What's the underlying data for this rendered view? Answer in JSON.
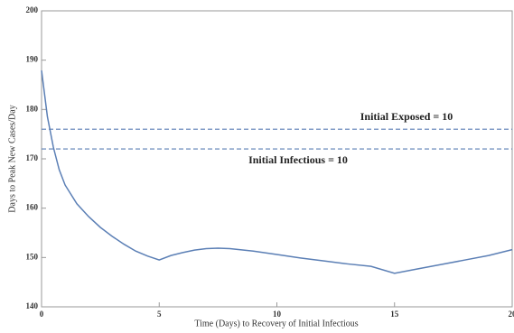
{
  "chart_data": {
    "type": "line",
    "xlabel": "Time (Days) to Recovery of Initial Infectious",
    "ylabel": "Days to Peak New Cases/Day",
    "xlim": [
      0,
      20
    ],
    "xticks": [
      0,
      5,
      10,
      15,
      20
    ],
    "ylim": [
      140,
      200
    ],
    "yticks": [
      140,
      150,
      160,
      170,
      180,
      190,
      200
    ],
    "series": [
      {
        "color": "#5b7fb5",
        "x": [
          0,
          0.25,
          0.5,
          0.75,
          1,
          1.5,
          2,
          2.5,
          3,
          3.5,
          4,
          4.5,
          5,
          5.5,
          6,
          6.5,
          7,
          7.5,
          8,
          9,
          10,
          11,
          12,
          13,
          14,
          15,
          16,
          17,
          18,
          19,
          20
        ],
        "values": [
          187.9,
          178.5,
          172.4,
          167.8,
          164.7,
          160.9,
          158.3,
          156.1,
          154.3,
          152.7,
          151.3,
          150.3,
          149.5,
          150.4,
          151.0,
          151.5,
          151.8,
          151.9,
          151.8,
          151.3,
          150.6,
          149.9,
          149.3,
          148.7,
          148.2,
          146.8,
          147.7,
          148.6,
          149.5,
          150.4,
          151.6
        ]
      }
    ],
    "reference_lines": [
      {
        "value": 176,
        "label": "Initial Exposed  = 10",
        "color": "#5b7fb5"
      },
      {
        "value": 172,
        "label": "Initial Infectious  = 10",
        "color": "#5b7fb5"
      }
    ]
  }
}
